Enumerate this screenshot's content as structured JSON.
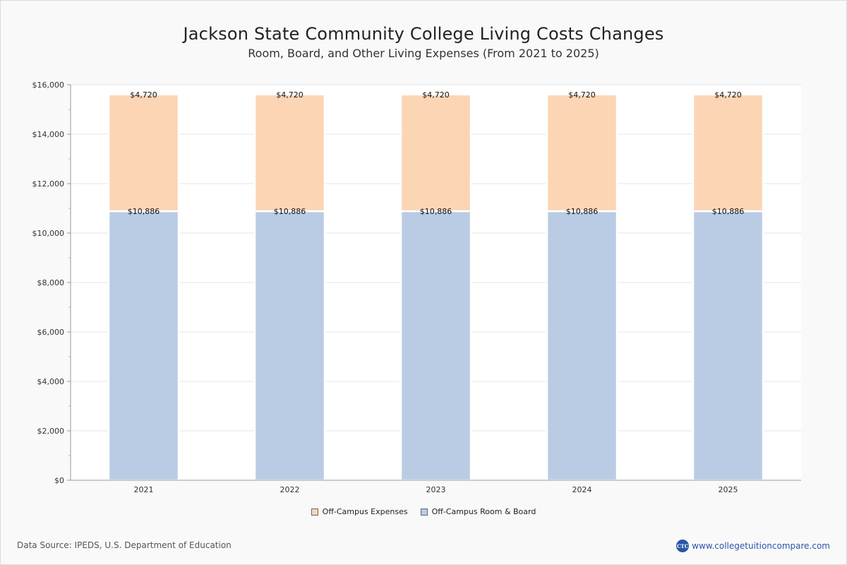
{
  "chart_data": {
    "type": "bar",
    "stacked": true,
    "title": "Jackson State Community College Living Costs Changes",
    "subtitle": "Room, Board, and Other Living Expenses (From 2021 to 2025)",
    "categories": [
      "2021",
      "2022",
      "2023",
      "2024",
      "2025"
    ],
    "series": [
      {
        "name": "Off-Campus Room & Board",
        "color": "#b9cce4",
        "values": [
          10886,
          10886,
          10886,
          10886,
          10886
        ],
        "labels": [
          "$10,886",
          "$10,886",
          "$10,886",
          "$10,886",
          "$10,886"
        ]
      },
      {
        "name": "Off-Campus Expenses",
        "color": "#fcd5b5",
        "values": [
          4720,
          4720,
          4720,
          4720,
          4720
        ],
        "labels": [
          "$4,720",
          "$4,720",
          "$4,720",
          "$4,720",
          "$4,720"
        ]
      }
    ],
    "ylim": [
      0,
      16000
    ],
    "yticks": [
      "$0",
      "$2,000",
      "$4,000",
      "$6,000",
      "$8,000",
      "$10,000",
      "$12,000",
      "$14,000",
      "$16,000"
    ],
    "ytick_values": [
      0,
      2000,
      4000,
      6000,
      8000,
      10000,
      12000,
      14000,
      16000
    ],
    "grid": true,
    "legend_position": "bottom-center",
    "legend": [
      "Off-Campus Expenses",
      "Off-Campus Room & Board"
    ]
  },
  "footer": {
    "source": "Data Source: IPEDS, U.S. Department of Education",
    "brand_text": "www.collegetuitioncompare.com",
    "brand_logo_text": "CTC"
  }
}
